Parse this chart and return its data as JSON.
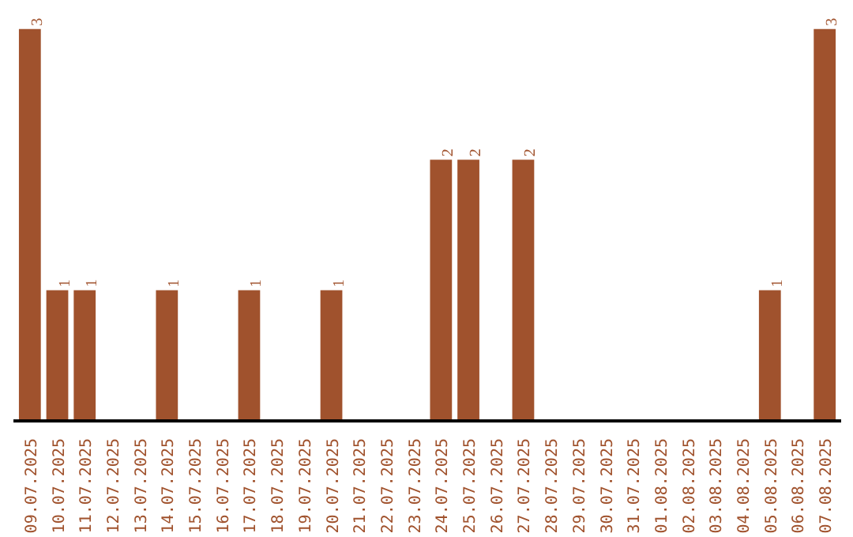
{
  "chart_data": {
    "type": "bar",
    "categories": [
      "09.07.2025",
      "10.07.2025",
      "11.07.2025",
      "12.07.2025",
      "13.07.2025",
      "14.07.2025",
      "15.07.2025",
      "16.07.2025",
      "17.07.2025",
      "18.07.2025",
      "19.07.2025",
      "20.07.2025",
      "21.07.2025",
      "22.07.2025",
      "23.07.2025",
      "24.07.2025",
      "25.07.2025",
      "26.07.2025",
      "27.07.2025",
      "28.07.2025",
      "29.07.2025",
      "30.07.2025",
      "31.07.2025",
      "01.08.2025",
      "02.08.2025",
      "03.08.2025",
      "04.08.2025",
      "05.08.2025",
      "06.08.2025",
      "07.08.2025"
    ],
    "values": [
      3,
      1,
      1,
      0,
      0,
      1,
      0,
      0,
      1,
      0,
      0,
      1,
      0,
      0,
      0,
      2,
      2,
      0,
      2,
      0,
      0,
      0,
      0,
      0,
      0,
      0,
      0,
      1,
      0,
      3
    ],
    "value_labels": [
      "3",
      "1",
      "1",
      null,
      null,
      "1",
      null,
      null,
      "1",
      null,
      null,
      "1",
      null,
      null,
      null,
      "2",
      "2",
      null,
      "2",
      null,
      null,
      null,
      null,
      null,
      null,
      null,
      null,
      "1",
      null,
      "3"
    ],
    "color": "#a0522d"
  }
}
